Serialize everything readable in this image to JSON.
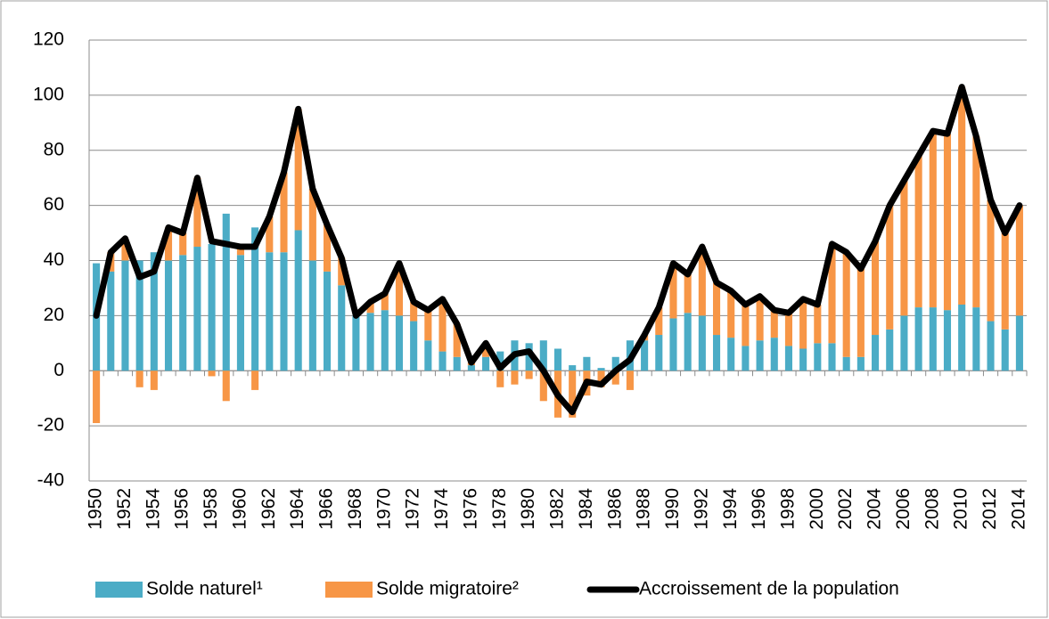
{
  "chart_data": {
    "type": "bar",
    "categories": [
      "1950",
      null,
      "1952",
      null,
      "1954",
      null,
      "1956",
      null,
      "1958",
      null,
      "1960",
      null,
      "1962",
      null,
      "1964",
      null,
      "1966",
      null,
      "1968",
      null,
      "1970",
      null,
      "1972",
      null,
      "1974",
      null,
      "1976",
      null,
      "1978",
      null,
      "1980",
      null,
      "1982",
      null,
      "1984",
      null,
      "1986",
      null,
      "1988",
      null,
      "1990",
      null,
      "1992",
      null,
      "1994",
      null,
      "1996",
      null,
      "1998",
      null,
      "2000",
      null,
      "2002",
      null,
      "2004",
      null,
      "2006",
      null,
      "2008",
      null,
      "2010",
      null,
      "2012",
      null,
      "2014"
    ],
    "series": [
      {
        "name": "Solde naturel¹",
        "type": "bar",
        "color": "#4bacc6",
        "values": [
          39,
          36,
          40,
          40,
          43,
          40,
          42,
          45,
          46,
          57,
          42,
          52,
          43,
          43,
          51,
          40,
          36,
          31,
          20,
          21,
          22,
          20,
          18,
          11,
          7,
          5,
          2,
          5,
          7,
          11,
          10,
          11,
          8,
          2,
          5,
          1,
          5,
          11,
          11,
          13,
          19,
          21,
          20,
          13,
          12,
          9,
          11,
          12,
          9,
          8,
          10,
          10,
          5,
          5,
          13,
          15,
          20,
          23,
          23,
          22,
          24,
          23,
          18,
          15,
          20
        ]
      },
      {
        "name": "Solde migratoire²",
        "type": "bar",
        "color": "#f79646",
        "values": [
          -19,
          7,
          8,
          -6,
          -7,
          12,
          8,
          25,
          -2,
          -11,
          3,
          -7,
          13,
          29,
          44,
          26,
          17,
          10,
          0,
          4,
          6,
          19,
          7,
          11,
          19,
          12,
          1,
          5,
          -6,
          -5,
          -3,
          -11,
          -17,
          -17,
          -9,
          -6,
          -5,
          -7,
          2,
          10,
          20,
          14,
          25,
          19,
          17,
          15,
          16,
          10,
          12,
          18,
          14,
          36,
          38,
          32,
          34,
          45,
          49,
          55,
          64,
          64,
          79,
          62,
          44,
          35,
          40
        ]
      },
      {
        "name": "Accroissement de la population",
        "type": "line",
        "color": "#000000",
        "values": [
          20,
          43,
          48,
          34,
          36,
          52,
          50,
          70,
          47,
          46,
          45,
          45,
          56,
          72,
          95,
          66,
          53,
          41,
          20,
          25,
          28,
          39,
          25,
          22,
          26,
          17,
          3,
          10,
          1,
          6,
          7,
          0,
          -9,
          -15,
          -4,
          -5,
          0,
          4,
          13,
          23,
          39,
          35,
          45,
          32,
          29,
          24,
          27,
          22,
          21,
          26,
          24,
          46,
          43,
          37,
          47,
          60,
          69,
          78,
          87,
          86,
          103,
          85,
          62,
          50,
          60
        ]
      }
    ],
    "ylim": [
      -40,
      120
    ],
    "yticks": [
      -40,
      -20,
      0,
      20,
      40,
      60,
      80,
      100,
      120
    ],
    "grid": true
  }
}
